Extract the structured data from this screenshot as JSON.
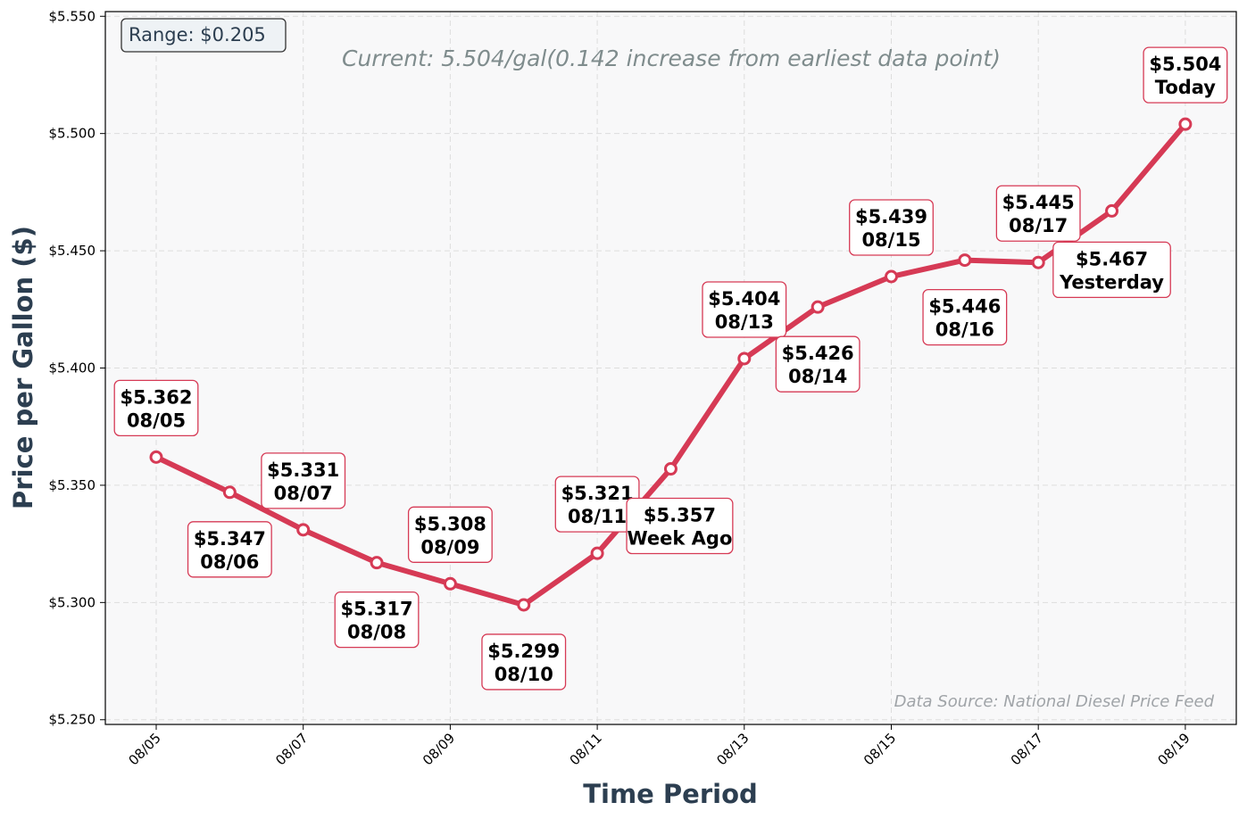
{
  "chart_data": {
    "type": "line",
    "title": "",
    "xlabel": "Time Period",
    "ylabel": "Price per Gallon ($)",
    "x": [
      "08/05",
      "08/06",
      "08/07",
      "08/08",
      "08/09",
      "08/10",
      "08/11",
      "08/12",
      "08/13",
      "08/14",
      "08/15",
      "08/16",
      "08/17",
      "08/18",
      "08/19"
    ],
    "series": [
      {
        "values": [
          5.362,
          5.347,
          5.331,
          5.317,
          5.308,
          5.299,
          5.321,
          5.357,
          5.404,
          5.426,
          5.439,
          5.446,
          5.445,
          5.467,
          5.504
        ]
      }
    ],
    "ylim": [
      5.248,
      5.552
    ],
    "yticks": [
      5.25,
      5.3,
      5.35,
      5.4,
      5.45,
      5.5,
      5.55
    ],
    "ytick_labels": [
      "$5.250",
      "$5.300",
      "$5.350",
      "$5.400",
      "$5.450",
      "$5.500",
      "$5.550"
    ],
    "xticks": [
      "08/05",
      "08/07",
      "08/09",
      "08/11",
      "08/13",
      "08/15",
      "08/17",
      "08/19"
    ],
    "grid": true,
    "point_labels": [
      {
        "price": "$5.362",
        "label": "08/05",
        "side": "above"
      },
      {
        "price": "$5.347",
        "label": "08/06",
        "side": "below"
      },
      {
        "price": "$5.331",
        "label": "08/07",
        "side": "above"
      },
      {
        "price": "$5.317",
        "label": "08/08",
        "side": "below"
      },
      {
        "price": "$5.308",
        "label": "08/09",
        "side": "above"
      },
      {
        "price": "$5.299",
        "label": "08/10",
        "side": "below"
      },
      {
        "price": "$5.321",
        "label": "08/11",
        "side": "above"
      },
      {
        "price": "$5.357",
        "label": "Week Ago",
        "side": "below"
      },
      {
        "price": "$5.404",
        "label": "08/13",
        "side": "above"
      },
      {
        "price": "$5.426",
        "label": "08/14",
        "side": "below"
      },
      {
        "price": "$5.439",
        "label": "08/15",
        "side": "above"
      },
      {
        "price": "$5.446",
        "label": "08/16",
        "side": "below"
      },
      {
        "price": "$5.445",
        "label": "08/17",
        "side": "above"
      },
      {
        "price": "$5.467",
        "label": "Yesterday",
        "side": "below"
      },
      {
        "price": "$5.504",
        "label": "Today",
        "side": "above"
      }
    ],
    "annotations": {
      "range": "Range: $0.205",
      "current": "Current: 5.504/gal(0.142 increase from earliest data point)",
      "source": "Data Source: National Diesel Price Feed"
    },
    "colors": {
      "line": "#d63a55",
      "marker_fill": "#ffffff",
      "plot_bg": "#f8f8f9",
      "axis_label": "#2c3e50",
      "current_text": "#7f8c8d",
      "source_text": "#a0a4a8",
      "range_box_bg": "#eef2f5"
    }
  }
}
